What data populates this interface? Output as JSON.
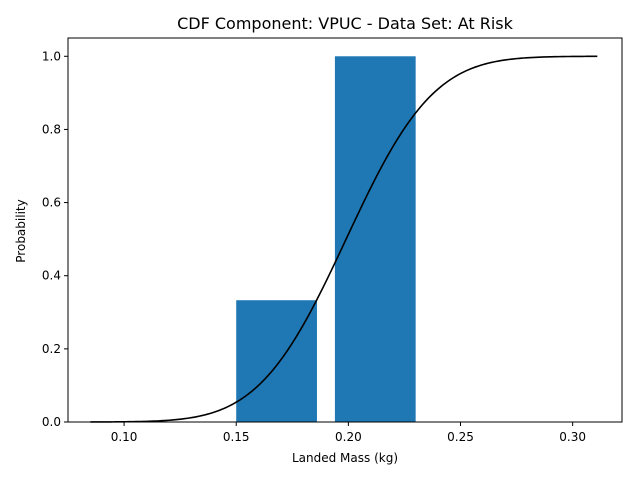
{
  "chart_data": {
    "type": "bar",
    "title": "CDF Component: VPUC - Data Set: At Risk",
    "xlabel": "Landed Mass (kg)",
    "ylabel": "Probability",
    "xlim": [
      0.075,
      0.322
    ],
    "ylim": [
      0,
      1.05
    ],
    "grid": false,
    "xticks": [
      0.1,
      0.15,
      0.2,
      0.25,
      0.3
    ],
    "xtick_labels": [
      "0.10",
      "0.15",
      "0.20",
      "0.25",
      "0.30"
    ],
    "yticks": [
      0.0,
      0.2,
      0.4,
      0.6,
      0.8,
      1.0
    ],
    "ytick_labels": [
      "0.0",
      "0.2",
      "0.4",
      "0.6",
      "0.8",
      "1.0"
    ],
    "bars": {
      "color": "#1f77b4",
      "items": [
        {
          "x_start": 0.15,
          "x_end": 0.186,
          "value": 0.333
        },
        {
          "x_start": 0.194,
          "x_end": 0.23,
          "value": 1.0
        }
      ]
    },
    "curve": {
      "type": "line",
      "color": "#000000",
      "description": "normal CDF",
      "mean": 0.199,
      "std": 0.0305,
      "x_range": [
        0.085,
        0.311
      ]
    }
  }
}
